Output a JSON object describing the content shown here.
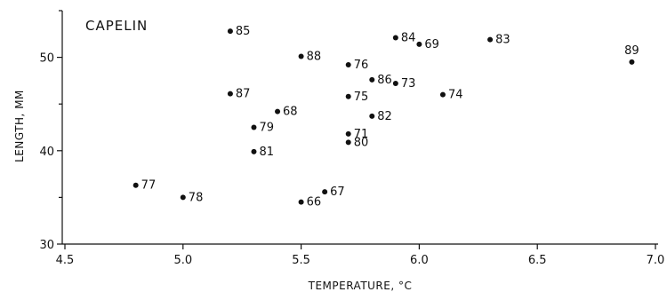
{
  "chart_data": {
    "type": "scatter",
    "title": "CAPELIN",
    "xlabel": "TEMPERATURE, °C",
    "ylabel": "LENGTH, MM",
    "xlim": [
      4.5,
      7.0
    ],
    "ylim": [
      30,
      55
    ],
    "x_ticks": [
      "4.5",
      "5.0",
      "5.5",
      "6.0",
      "6.5",
      "7.0"
    ],
    "y_ticks": [
      "30",
      "40",
      "50"
    ],
    "grid": false,
    "points": [
      {
        "label": "85",
        "x": 5.2,
        "y": 52.8
      },
      {
        "label": "84",
        "x": 5.9,
        "y": 52.1
      },
      {
        "label": "69",
        "x": 6.0,
        "y": 51.4
      },
      {
        "label": "83",
        "x": 6.3,
        "y": 51.9
      },
      {
        "label": "89",
        "x": 6.9,
        "y": 49.5
      },
      {
        "label": "88",
        "x": 5.5,
        "y": 50.1
      },
      {
        "label": "76",
        "x": 5.7,
        "y": 49.2
      },
      {
        "label": "86",
        "x": 5.8,
        "y": 47.6
      },
      {
        "label": "73",
        "x": 5.9,
        "y": 47.2
      },
      {
        "label": "87",
        "x": 5.2,
        "y": 46.1
      },
      {
        "label": "75",
        "x": 5.7,
        "y": 45.8
      },
      {
        "label": "74",
        "x": 6.1,
        "y": 46.0
      },
      {
        "label": "68",
        "x": 5.4,
        "y": 44.2
      },
      {
        "label": "82",
        "x": 5.8,
        "y": 43.7
      },
      {
        "label": "79",
        "x": 5.3,
        "y": 42.5
      },
      {
        "label": "71",
        "x": 5.7,
        "y": 41.8
      },
      {
        "label": "80",
        "x": 5.7,
        "y": 40.9
      },
      {
        "label": "81",
        "x": 5.3,
        "y": 39.9
      },
      {
        "label": "77",
        "x": 4.8,
        "y": 36.3
      },
      {
        "label": "78",
        "x": 5.0,
        "y": 35.0
      },
      {
        "label": "67",
        "x": 5.6,
        "y": 35.6
      },
      {
        "label": "66",
        "x": 5.5,
        "y": 34.5
      }
    ]
  }
}
